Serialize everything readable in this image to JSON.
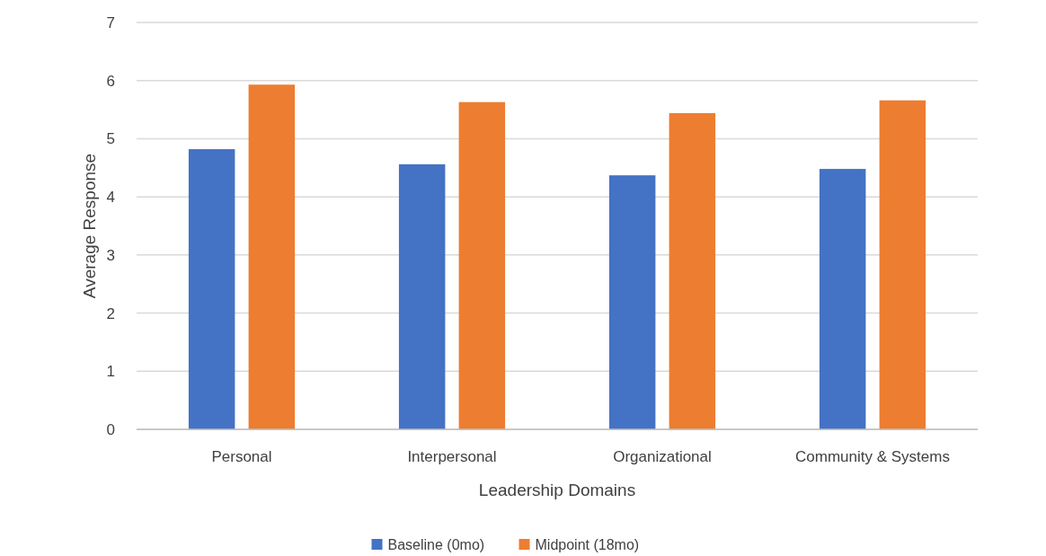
{
  "chart_data": {
    "type": "bar",
    "xlabel": "Leadership Domains",
    "ylabel": "Average Response",
    "categories": [
      "Personal",
      "Interpersonal",
      "Organizational",
      "Community & Systems"
    ],
    "series": [
      {
        "name": "Baseline (0mo)",
        "color": "#4472c4",
        "values": [
          4.82,
          4.56,
          4.37,
          4.48
        ]
      },
      {
        "name": "Midpoint (18mo)",
        "color": "#ed7d31",
        "values": [
          5.93,
          5.63,
          5.44,
          5.66
        ]
      }
    ],
    "ylim": [
      0,
      7
    ],
    "yticks": [
      0,
      1,
      2,
      3,
      4,
      5,
      6,
      7
    ],
    "grid": "y",
    "legend": "bottom"
  }
}
